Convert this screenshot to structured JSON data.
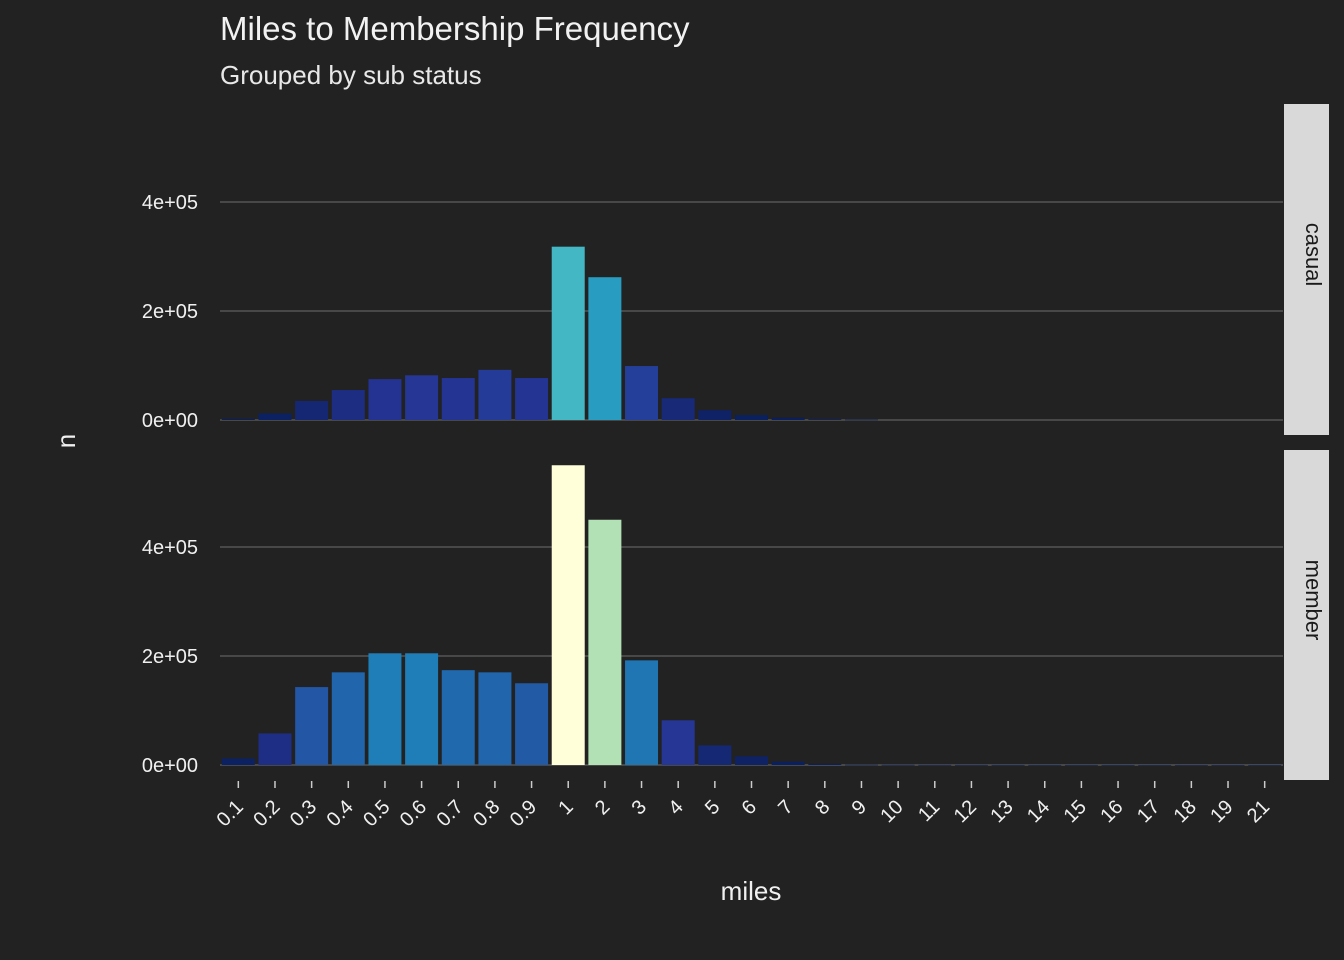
{
  "chart_data": {
    "type": "bar",
    "title": "Miles to Membership Frequency",
    "subtitle": "Grouped by sub status",
    "xlabel": "miles",
    "ylabel": "n",
    "categories": [
      "0.1",
      "0.2",
      "0.3",
      "0.4",
      "0.5",
      "0.6",
      "0.7",
      "0.8",
      "0.9",
      "1",
      "2",
      "3",
      "4",
      "5",
      "6",
      "7",
      "8",
      "9",
      "10",
      "11",
      "12",
      "13",
      "14",
      "15",
      "16",
      "17",
      "18",
      "19",
      "21"
    ],
    "ylim": [
      0,
      550000
    ],
    "yticks": [
      0,
      200000,
      400000
    ],
    "ytick_labels": [
      "0e+00",
      "2e+05",
      "4e+05"
    ],
    "grid": true,
    "color_scale": [
      "#081d58",
      "#253494",
      "#225ea8",
      "#1d91c0",
      "#41b6c4",
      "#7fcdbb",
      "#c7e9b4",
      "#ffffd9"
    ],
    "facets": [
      {
        "label": "casual",
        "values": [
          2000,
          12000,
          35000,
          55000,
          75000,
          82000,
          77000,
          92000,
          77000,
          318000,
          262000,
          99000,
          40000,
          18000,
          9000,
          4000,
          1500,
          700,
          0,
          0,
          0,
          0,
          0,
          0,
          0,
          0,
          0,
          0,
          0
        ]
      },
      {
        "label": "member",
        "values": [
          12000,
          58000,
          143000,
          170000,
          205000,
          205000,
          174000,
          170000,
          150000,
          550000,
          450000,
          192000,
          82000,
          36000,
          16000,
          6000,
          2000,
          500,
          300,
          200,
          150,
          100,
          100,
          100,
          80,
          60,
          50,
          40,
          30
        ]
      }
    ]
  }
}
